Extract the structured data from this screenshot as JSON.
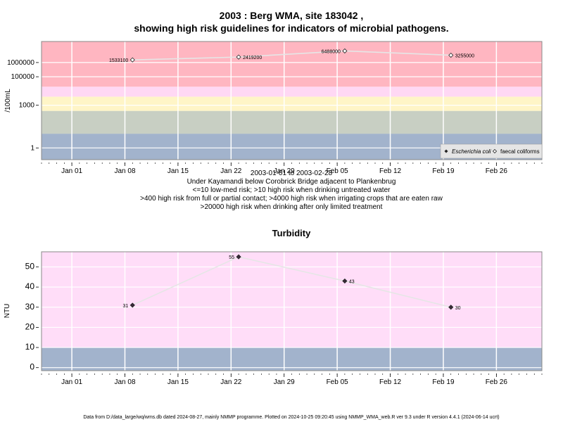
{
  "chart_data": [
    {
      "type": "line",
      "title_line1": "2003 : Berg WMA, site 183042 ,",
      "title_line2": "showing high risk guidelines for indicators of microbial pathogens.",
      "ylabel": "/100mL",
      "yscale": "log",
      "ylim": [
        0.15,
        30000000
      ],
      "yticks": [
        1,
        1000,
        100000,
        1000000
      ],
      "ytick_labels": [
        "1",
        "1000",
        "100000",
        "1000000"
      ],
      "xlim": [
        "2002-12-28",
        "2003-03-04"
      ],
      "xticks": [
        "2003-01-01",
        "2003-01-08",
        "2003-01-15",
        "2003-01-22",
        "2003-01-29",
        "2003-02-05",
        "2003-02-12",
        "2003-02-19",
        "2003-02-26"
      ],
      "xtick_labels": [
        "Jan 01",
        "Jan 08",
        "Jan 15",
        "Jan 22",
        "Jan 29",
        "Feb 05",
        "Feb 12",
        "Feb 19",
        "Feb 26"
      ],
      "bands": [
        {
          "from": 0.15,
          "to": 10,
          "color": "#a2b3cc"
        },
        {
          "from": 10,
          "to": 400,
          "color": "#c8cfc3"
        },
        {
          "from": 400,
          "to": 4000,
          "color": "#fff5c7"
        },
        {
          "from": 4000,
          "to": 20000,
          "color": "#ffd8f4"
        },
        {
          "from": 20000,
          "to": 30000000,
          "color": "#ffb6c1"
        }
      ],
      "series": [
        {
          "name": "faecal coliforms",
          "marker": "open-diamond",
          "x": [
            "2003-01-09",
            "2003-01-23",
            "2003-02-06",
            "2003-02-20"
          ],
          "y": [
            1533100,
            2419200,
            6488000,
            3255000
          ],
          "labels": [
            "1533100",
            "2419200",
            "6488000",
            "3255000"
          ]
        }
      ],
      "legend": {
        "position": "bottom-right",
        "items": [
          {
            "label": "Escherichia coli",
            "marker": "filled-diamond"
          },
          {
            "label": "faecal coliforms",
            "marker": "open-diamond"
          }
        ]
      },
      "caption": [
        "2003-01-01 to 2003-02-28",
        "Under Kayamandi below Corobrick Bridge adjacent to Plankenbrug",
        "<=10 low-med risk; >10 high risk when drinking untreated water",
        ">400 high risk from full or partial contact; >4000 high risk when irrigating crops that are eaten raw",
        ">20000 high risk when drinking after only limited treatment"
      ]
    },
    {
      "type": "line",
      "title": "Turbidity",
      "ylabel": "NTU",
      "ylim": [
        -1.5,
        57.5
      ],
      "yticks": [
        0,
        10,
        20,
        30,
        40,
        50
      ],
      "ytick_labels": [
        "0",
        "10",
        "20",
        "30",
        "40",
        "50"
      ],
      "xlim": [
        "2002-12-28",
        "2003-03-04"
      ],
      "xticks": [
        "2003-01-01",
        "2003-01-08",
        "2003-01-15",
        "2003-01-22",
        "2003-01-29",
        "2003-02-05",
        "2003-02-12",
        "2003-02-19",
        "2003-02-26"
      ],
      "xtick_labels": [
        "Jan 01",
        "Jan 08",
        "Jan 15",
        "Jan 22",
        "Jan 29",
        "Feb 05",
        "Feb 12",
        "Feb 19",
        "Feb 26"
      ],
      "bands": [
        {
          "from": -1.5,
          "to": 10,
          "color": "#a2b3cc"
        },
        {
          "from": 10,
          "to": 57.5,
          "color": "#ffddf8"
        }
      ],
      "series": [
        {
          "marker": "filled-diamond",
          "x": [
            "2003-01-09",
            "2003-01-23",
            "2003-02-06",
            "2003-02-20"
          ],
          "y": [
            31,
            55,
            43,
            30
          ],
          "labels": [
            "31",
            "55",
            "43",
            "30"
          ]
        }
      ]
    }
  ],
  "footer": "Data from D:/data_large/wq/wms.db dated 2024-08-27, mainly NMMP programme. Plotted on 2024-10-25 09:20:45 using NMMP_WMA_web.R ver 9.3 under R version 4.4.1 (2024-06-14 ucrt)"
}
